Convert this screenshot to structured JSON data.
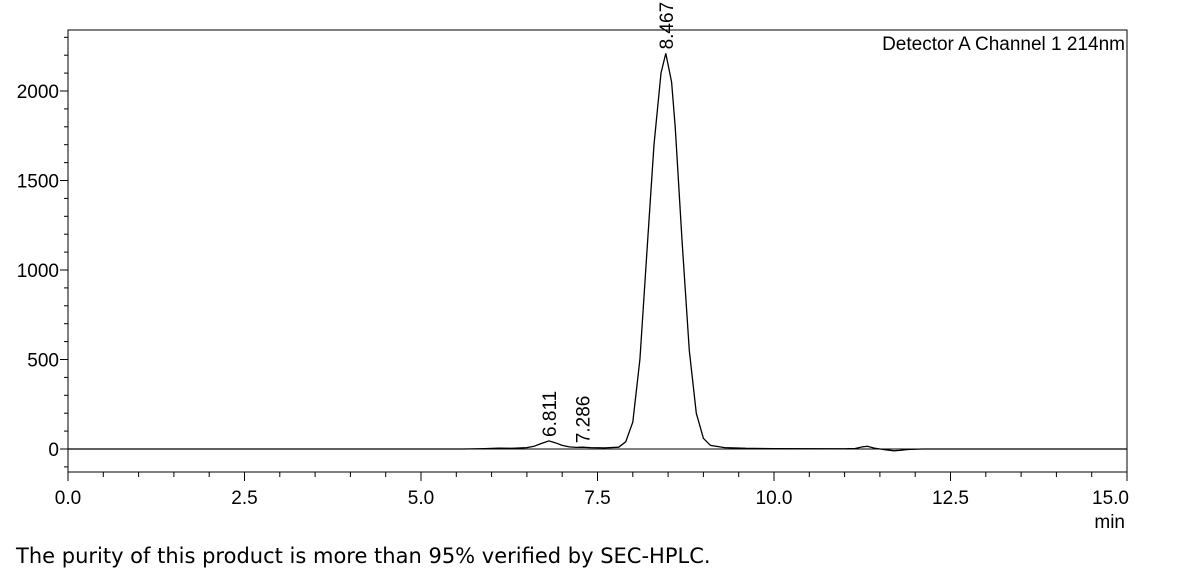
{
  "chart_data": {
    "type": "line",
    "legend_label": "Detector A Channel 1 214nm",
    "xlabel": "min",
    "ylabel": "",
    "xlim": [
      0.0,
      15.0
    ],
    "ylim": [
      -130,
      2330
    ],
    "xticks": [
      "0.0",
      "2.5",
      "5.0",
      "7.5",
      "10.0",
      "12.5",
      "15.0"
    ],
    "yticks": [
      "0",
      "500",
      "1000",
      "1500",
      "2000"
    ],
    "peak_labels": [
      {
        "label": "6.811",
        "x": 6.811,
        "y": 45
      },
      {
        "label": "7.286",
        "x": 7.286,
        "y": 10
      },
      {
        "label": "8.467",
        "x": 8.467,
        "y": 2210
      }
    ],
    "series": [
      {
        "points": [
          [
            0.0,
            0
          ],
          [
            1.0,
            0
          ],
          [
            2.0,
            0
          ],
          [
            3.0,
            0
          ],
          [
            4.0,
            0
          ],
          [
            5.0,
            0
          ],
          [
            5.6,
            0
          ],
          [
            5.9,
            2
          ],
          [
            6.1,
            5
          ],
          [
            6.3,
            4
          ],
          [
            6.5,
            8
          ],
          [
            6.6,
            15
          ],
          [
            6.7,
            30
          ],
          [
            6.811,
            45
          ],
          [
            6.9,
            35
          ],
          [
            7.0,
            20
          ],
          [
            7.1,
            12
          ],
          [
            7.2,
            9
          ],
          [
            7.286,
            10
          ],
          [
            7.4,
            8
          ],
          [
            7.6,
            6
          ],
          [
            7.8,
            10
          ],
          [
            7.9,
            40
          ],
          [
            8.0,
            150
          ],
          [
            8.1,
            500
          ],
          [
            8.2,
            1100
          ],
          [
            8.3,
            1700
          ],
          [
            8.4,
            2100
          ],
          [
            8.467,
            2210
          ],
          [
            8.55,
            2050
          ],
          [
            8.6,
            1800
          ],
          [
            8.7,
            1150
          ],
          [
            8.8,
            550
          ],
          [
            8.9,
            200
          ],
          [
            9.0,
            60
          ],
          [
            9.1,
            20
          ],
          [
            9.3,
            8
          ],
          [
            9.6,
            4
          ],
          [
            10.0,
            2
          ],
          [
            11.0,
            1
          ],
          [
            11.15,
            3
          ],
          [
            11.25,
            12
          ],
          [
            11.32,
            15
          ],
          [
            11.42,
            5
          ],
          [
            11.55,
            -3
          ],
          [
            11.7,
            -10
          ],
          [
            11.78,
            -8
          ],
          [
            11.9,
            -3
          ],
          [
            12.1,
            0
          ],
          [
            13.0,
            0
          ],
          [
            14.0,
            0
          ],
          [
            15.0,
            0
          ]
        ]
      }
    ],
    "colors": {
      "line": "#000000",
      "frame": "#000000"
    }
  },
  "caption": "The purity of this product is more than 95% verified by SEC-HPLC."
}
